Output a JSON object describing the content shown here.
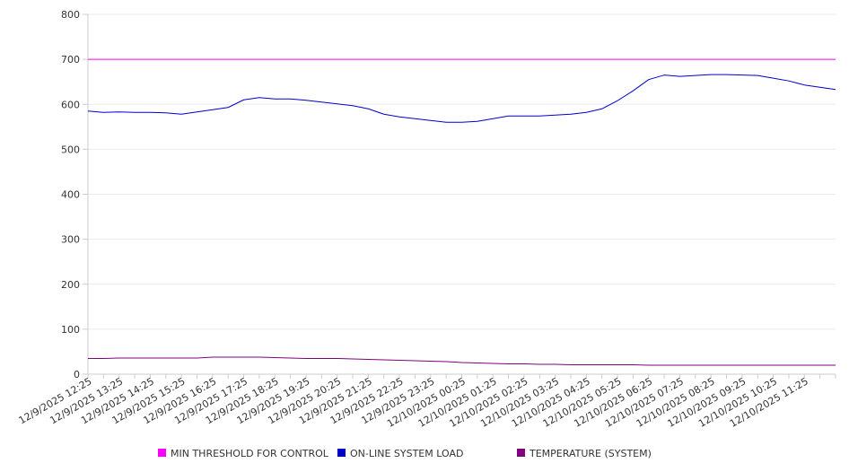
{
  "chart_data": {
    "type": "line",
    "title": "",
    "xlabel": "",
    "ylabel": "",
    "ylim": [
      0,
      800
    ],
    "yticks": [
      0,
      100,
      200,
      300,
      400,
      500,
      600,
      700,
      800
    ],
    "grid": true,
    "legend_position": "bottom",
    "x_tick_labels": [
      "12/9/2025 12:25",
      "12/9/2025 13:25",
      "12/9/2025 14:25",
      "12/9/2025 15:25",
      "12/9/2025 16:25",
      "12/9/2025 17:25",
      "12/9/2025 18:25",
      "12/9/2025 19:25",
      "12/9/2025 20:25",
      "12/9/2025 21:25",
      "12/9/2025 22:25",
      "12/9/2025 23:25",
      "12/10/2025 00:25",
      "12/10/2025 01:25",
      "12/10/2025 02:25",
      "12/10/2025 03:25",
      "12/10/2025 04:25",
      "12/10/2025 05:25",
      "12/10/2025 06:25",
      "12/10/2025 07:25",
      "12/10/2025 08:25",
      "12/10/2025 09:25",
      "12/10/2025 10:25",
      "12/10/2025 11:25"
    ],
    "x": [
      "12/9/2025 12:25",
      "12/9/2025 12:55",
      "12/9/2025 13:25",
      "12/9/2025 13:55",
      "12/9/2025 14:25",
      "12/9/2025 14:55",
      "12/9/2025 15:25",
      "12/9/2025 15:55",
      "12/9/2025 16:25",
      "12/9/2025 16:55",
      "12/9/2025 17:25",
      "12/9/2025 17:55",
      "12/9/2025 18:25",
      "12/9/2025 18:55",
      "12/9/2025 19:25",
      "12/9/2025 19:55",
      "12/9/2025 20:25",
      "12/9/2025 20:55",
      "12/9/2025 21:25",
      "12/9/2025 21:55",
      "12/9/2025 22:25",
      "12/9/2025 22:55",
      "12/9/2025 23:25",
      "12/9/2025 23:55",
      "12/10/2025 00:25",
      "12/10/2025 00:55",
      "12/10/2025 01:25",
      "12/10/2025 01:55",
      "12/10/2025 02:25",
      "12/10/2025 02:55",
      "12/10/2025 03:25",
      "12/10/2025 03:55",
      "12/10/2025 04:25",
      "12/10/2025 04:55",
      "12/10/2025 05:25",
      "12/10/2025 05:55",
      "12/10/2025 06:25",
      "12/10/2025 06:55",
      "12/10/2025 07:25",
      "12/10/2025 07:55",
      "12/10/2025 08:25",
      "12/10/2025 08:55",
      "12/10/2025 09:25",
      "12/10/2025 09:55",
      "12/10/2025 10:25",
      "12/10/2025 10:55",
      "12/10/2025 11:25",
      "12/10/2025 11:55",
      "12/10/2025 12:25"
    ],
    "series": [
      {
        "name": "MIN THRESHOLD FOR CONTROL",
        "color": "#ff00ff",
        "values": [
          700,
          700,
          700,
          700,
          700,
          700,
          700,
          700,
          700,
          700,
          700,
          700,
          700,
          700,
          700,
          700,
          700,
          700,
          700,
          700,
          700,
          700,
          700,
          700,
          700,
          700,
          700,
          700,
          700,
          700,
          700,
          700,
          700,
          700,
          700,
          700,
          700,
          700,
          700,
          700,
          700,
          700,
          700,
          700,
          700,
          700,
          700,
          700,
          700
        ]
      },
      {
        "name": "ON-LINE SYSTEM LOAD",
        "color": "#0000cc",
        "values": [
          585,
          582,
          583,
          582,
          582,
          581,
          578,
          583,
          588,
          593,
          610,
          615,
          612,
          612,
          609,
          605,
          601,
          597,
          590,
          578,
          572,
          568,
          564,
          560,
          560,
          562,
          568,
          574,
          574,
          574,
          576,
          578,
          582,
          590,
          608,
          630,
          655,
          665,
          662,
          664,
          666,
          666,
          665,
          664,
          658,
          652,
          643,
          638,
          633
        ]
      },
      {
        "name": "TEMPERATURE (SYSTEM)",
        "color": "#800080",
        "values": [
          35,
          35,
          36,
          36,
          36,
          36,
          36,
          36,
          38,
          38,
          38,
          38,
          37,
          36,
          35,
          35,
          35,
          34,
          33,
          32,
          31,
          30,
          29,
          28,
          26,
          25,
          24,
          23,
          23,
          22,
          22,
          21,
          21,
          21,
          21,
          21,
          20,
          20,
          20,
          20,
          20,
          20,
          20,
          20,
          20,
          20,
          20,
          20,
          20
        ]
      }
    ]
  }
}
